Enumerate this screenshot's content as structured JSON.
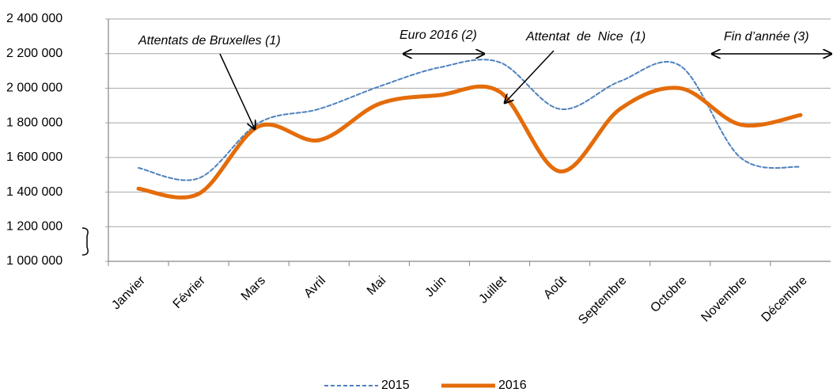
{
  "chart_data": {
    "type": "line",
    "categories": [
      "Janvier",
      "Février",
      "Mars",
      "Avril",
      "Mai",
      "Juin",
      "Juillet",
      "Août",
      "Septembre",
      "Octobre",
      "Novembre",
      "Décembre"
    ],
    "series": [
      {
        "name": "2015",
        "color": "#4f81bd",
        "dashed": true,
        "values": [
          1540000,
          1480000,
          1800000,
          1880000,
          2010000,
          2120000,
          2150000,
          1880000,
          2040000,
          2130000,
          1600000,
          1545000
        ]
      },
      {
        "name": "2016",
        "color": "#e46c0a",
        "dashed": false,
        "values": [
          1420000,
          1390000,
          1780000,
          1700000,
          1910000,
          1960000,
          1980000,
          1520000,
          1880000,
          2000000,
          1790000,
          1845000
        ]
      }
    ],
    "ylim": [
      1000000,
      2400000
    ],
    "yticks": [
      {
        "value": 1000000,
        "label": "1 000 000"
      },
      {
        "value": 1200000,
        "label": "1 200 000"
      },
      {
        "value": 1400000,
        "label": "1 400 000"
      },
      {
        "value": 1600000,
        "label": "1 600 000"
      },
      {
        "value": 1800000,
        "label": "1 800 000"
      },
      {
        "value": 2000000,
        "label": "2 000 000"
      },
      {
        "value": 2200000,
        "label": "2 200 000"
      },
      {
        "value": 2400000,
        "label": "2 400 000"
      }
    ],
    "grid": true,
    "legend": "bottom",
    "annotations": [
      "Attentats de Bruxelles (1)",
      "Euro 2016 (2)",
      "Attentat  de  Nice  (1)",
      "Fin d’année (3)"
    ]
  }
}
